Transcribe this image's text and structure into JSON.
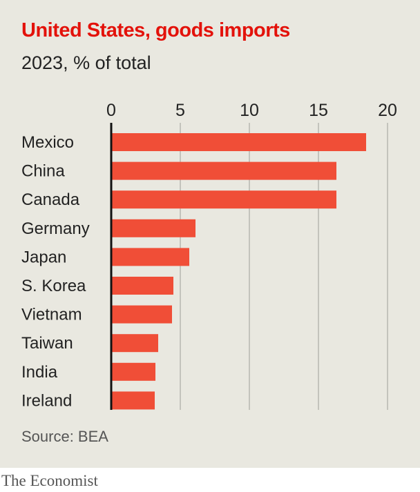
{
  "chart_data": {
    "type": "bar",
    "orientation": "horizontal",
    "title": "United States, goods imports",
    "subtitle": "2023, % of total",
    "categories": [
      "Mexico",
      "China",
      "Canada",
      "Germany",
      "Japan",
      "S. Korea",
      "Vietnam",
      "Taiwan",
      "India",
      "Ireland"
    ],
    "values": [
      18.45,
      16.3,
      16.3,
      6.1,
      5.65,
      4.5,
      4.4,
      3.4,
      3.2,
      3.15
    ],
    "xlim": [
      0,
      20
    ],
    "xticks": [
      0,
      5,
      10,
      15,
      20
    ],
    "grid": true,
    "bar_color": "#f04e37",
    "title_color": "#e3120b",
    "source": "Source: BEA"
  },
  "brand": "The Economist"
}
